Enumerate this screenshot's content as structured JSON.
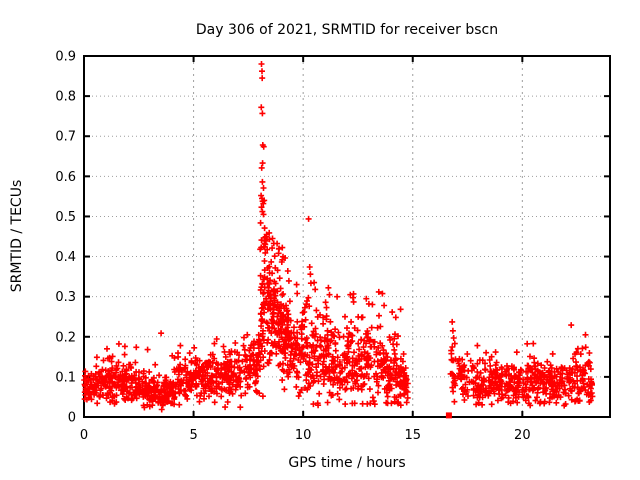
{
  "chart_data": {
    "type": "scatter",
    "title": "Day 306 of 2021, SRMTID for receiver bscn",
    "xlabel": "GPS time / hours",
    "ylabel": "SRMTID / TECUs",
    "xlim": [
      0,
      24
    ],
    "ylim": [
      0,
      0.9
    ],
    "x_ticks": [
      {
        "v": 0,
        "label": "0"
      },
      {
        "v": 5,
        "label": "5"
      },
      {
        "v": 10,
        "label": "10"
      },
      {
        "v": 15,
        "label": "15"
      },
      {
        "v": 20,
        "label": "20"
      }
    ],
    "y_ticks": [
      {
        "v": 0.0,
        "label": "0"
      },
      {
        "v": 0.1,
        "label": "0.1"
      },
      {
        "v": 0.2,
        "label": "0.2"
      },
      {
        "v": 0.3,
        "label": "0.3"
      },
      {
        "v": 0.4,
        "label": "0.4"
      },
      {
        "v": 0.5,
        "label": "0.5"
      },
      {
        "v": 0.6,
        "label": "0.6"
      },
      {
        "v": 0.7,
        "label": "0.7"
      },
      {
        "v": 0.8,
        "label": "0.8"
      },
      {
        "v": 0.9,
        "label": "0.9"
      }
    ],
    "legend": "none",
    "grid": {
      "color": "#9e9e9e",
      "horizontal_dash": "1 3",
      "vertical_dash": "2 4"
    },
    "axis_color": "#000000",
    "marker": {
      "shape": "plus",
      "size": 6,
      "stroke_width": 1.6,
      "color": "#ff0000"
    },
    "series": [
      {
        "name": "SRMTID",
        "color": "#ff0000",
        "points_explicit": [
          [
            8.1,
            0.88
          ],
          [
            8.12,
            0.862
          ],
          [
            8.13,
            0.845
          ],
          [
            8.09,
            0.772
          ],
          [
            8.14,
            0.757
          ],
          [
            8.16,
            0.678
          ],
          [
            8.2,
            0.674
          ],
          [
            8.15,
            0.633
          ],
          [
            8.11,
            0.621
          ],
          [
            8.14,
            0.586
          ],
          [
            8.19,
            0.571
          ],
          [
            8.08,
            0.552
          ],
          [
            8.12,
            0.545
          ],
          [
            8.15,
            0.538
          ],
          [
            8.22,
            0.54
          ],
          [
            8.18,
            0.532
          ],
          [
            8.1,
            0.523
          ],
          [
            8.14,
            0.512
          ],
          [
            8.19,
            0.505
          ],
          [
            8.06,
            0.484
          ],
          [
            8.24,
            0.471
          ],
          [
            8.33,
            0.455
          ],
          [
            8.28,
            0.449
          ],
          [
            8.1,
            0.441
          ],
          [
            8.27,
            0.43
          ],
          [
            8.25,
            0.424
          ],
          [
            8.04,
            0.418
          ],
          [
            8.45,
            0.459
          ],
          [
            8.6,
            0.445
          ],
          [
            8.9,
            0.42
          ],
          [
            9.05,
            0.392
          ],
          [
            9.3,
            0.364
          ],
          [
            10.25,
            0.494
          ],
          [
            10.3,
            0.374
          ],
          [
            10.33,
            0.356
          ],
          [
            10.5,
            0.335
          ],
          [
            10.55,
            0.318
          ],
          [
            9.7,
            0.33
          ],
          [
            9.73,
            0.308
          ],
          [
            11.15,
            0.322
          ],
          [
            11.2,
            0.305
          ],
          [
            11.55,
            0.3
          ],
          [
            12.15,
            0.305
          ],
          [
            12.3,
            0.287
          ],
          [
            12.88,
            0.295
          ],
          [
            13.0,
            0.282
          ],
          [
            13.45,
            0.312
          ],
          [
            3.52,
            0.209
          ],
          [
            1.05,
            0.17
          ],
          [
            2.9,
            0.168
          ],
          [
            4.4,
            0.178
          ],
          [
            5.95,
            0.183
          ],
          [
            7.3,
            0.198
          ],
          [
            7.45,
            0.205
          ],
          [
            16.8,
            0.237
          ],
          [
            16.83,
            0.215
          ],
          [
            16.87,
            0.197
          ],
          [
            16.92,
            0.183
          ],
          [
            17.95,
            0.178
          ],
          [
            20.5,
            0.183
          ],
          [
            22.23,
            0.229
          ],
          [
            22.88,
            0.205
          ]
        ],
        "points_square": [
          [
            16.65,
            0.004
          ]
        ],
        "generator": {
          "seed": 306,
          "bands": [
            {
              "x0": 0.0,
              "x1": 8.05,
              "n": 720,
              "outlier_p": 0.018,
              "ymin": 0.018,
              "ymax": 0.205,
              "profile": [
                [
                  0.0,
                  0.072,
                  0.02
                ],
                [
                  0.7,
                  0.08,
                  0.024
                ],
                [
                  1.2,
                  0.088,
                  0.026
                ],
                [
                  1.8,
                  0.08,
                  0.023
                ],
                [
                  2.4,
                  0.082,
                  0.024
                ],
                [
                  3.0,
                  0.07,
                  0.022
                ],
                [
                  3.6,
                  0.057,
                  0.018
                ],
                [
                  3.9,
                  0.056,
                  0.018
                ],
                [
                  4.3,
                  0.095,
                  0.03
                ],
                [
                  5.0,
                  0.09,
                  0.028
                ],
                [
                  5.8,
                  0.1,
                  0.03
                ],
                [
                  6.4,
                  0.095,
                  0.028
                ],
                [
                  7.0,
                  0.105,
                  0.032
                ],
                [
                  7.6,
                  0.115,
                  0.035
                ],
                [
                  8.05,
                  0.16,
                  0.055
                ]
              ]
            },
            {
              "x0": 8.05,
              "x1": 9.4,
              "n": 230,
              "outlier_p": 0.03,
              "ymin": 0.05,
              "ymax": 0.455,
              "profile": [
                [
                  8.05,
                  0.24,
                  0.09
                ],
                [
                  8.2,
                  0.3,
                  0.09
                ],
                [
                  8.4,
                  0.29,
                  0.08
                ],
                [
                  8.7,
                  0.26,
                  0.07
                ],
                [
                  9.0,
                  0.23,
                  0.065
                ],
                [
                  9.4,
                  0.19,
                  0.06
                ]
              ]
            },
            {
              "x0": 9.4,
              "x1": 14.78,
              "n": 520,
              "outlier_p": 0.02,
              "ymin": 0.028,
              "ymax": 0.335,
              "profile": [
                [
                  9.4,
                  0.175,
                  0.055
                ],
                [
                  9.8,
                  0.155,
                  0.05
                ],
                [
                  10.2,
                  0.15,
                  0.055
                ],
                [
                  10.6,
                  0.16,
                  0.058
                ],
                [
                  11.0,
                  0.15,
                  0.055
                ],
                [
                  11.4,
                  0.148,
                  0.055
                ],
                [
                  11.8,
                  0.138,
                  0.05
                ],
                [
                  12.2,
                  0.15,
                  0.055
                ],
                [
                  12.6,
                  0.128,
                  0.048
                ],
                [
                  13.0,
                  0.148,
                  0.058
                ],
                [
                  13.4,
                  0.128,
                  0.05
                ],
                [
                  13.8,
                  0.112,
                  0.045
                ],
                [
                  14.2,
                  0.112,
                  0.045
                ],
                [
                  14.78,
                  0.085,
                  0.032
                ]
              ]
            },
            {
              "x0": 16.72,
              "x1": 23.2,
              "n": 500,
              "outlier_p": 0.012,
              "ymin": 0.028,
              "ymax": 0.195,
              "profile": [
                [
                  16.72,
                  0.125,
                  0.04
                ],
                [
                  17.0,
                  0.1,
                  0.032
                ],
                [
                  17.5,
                  0.088,
                  0.028
                ],
                [
                  18.0,
                  0.086,
                  0.028
                ],
                [
                  18.5,
                  0.094,
                  0.03
                ],
                [
                  19.0,
                  0.086,
                  0.026
                ],
                [
                  19.5,
                  0.082,
                  0.025
                ],
                [
                  20.0,
                  0.088,
                  0.028
                ],
                [
                  20.5,
                  0.094,
                  0.03
                ],
                [
                  21.0,
                  0.09,
                  0.028
                ],
                [
                  21.5,
                  0.084,
                  0.026
                ],
                [
                  22.0,
                  0.09,
                  0.03
                ],
                [
                  22.5,
                  0.094,
                  0.032
                ],
                [
                  23.2,
                  0.088,
                  0.03
                ]
              ]
            }
          ],
          "data_gaps": [
            [
              14.78,
              16.72
            ],
            [
              23.2,
              24.0
            ]
          ]
        }
      }
    ]
  }
}
